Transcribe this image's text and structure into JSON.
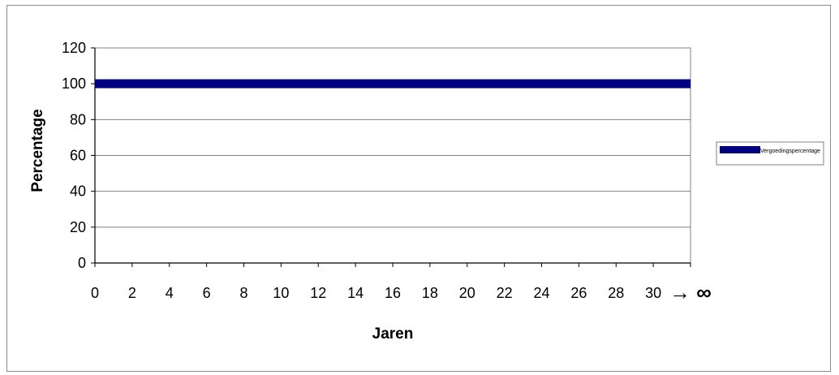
{
  "chart_data": {
    "type": "line",
    "title": "",
    "xlabel": "Jaren",
    "ylabel": "Percentage",
    "x": [
      0,
      2,
      4,
      6,
      8,
      10,
      12,
      14,
      16,
      18,
      20,
      22,
      24,
      26,
      28,
      30
    ],
    "xlim": [
      0,
      32
    ],
    "x_ticks": [
      "0",
      "2",
      "4",
      "6",
      "8",
      "10",
      "12",
      "14",
      "16",
      "18",
      "20",
      "22",
      "24",
      "26",
      "28",
      "30"
    ],
    "x_end_label": "→ ∞",
    "ylim": [
      0,
      120
    ],
    "y_ticks": [
      "0",
      "20",
      "40",
      "60",
      "80",
      "100",
      "120"
    ],
    "grid": true,
    "legend_position": "right",
    "series": [
      {
        "name": "Vergoedingspercentage",
        "color": "#000080",
        "values": [
          100,
          100,
          100,
          100,
          100,
          100,
          100,
          100,
          100,
          100,
          100,
          100,
          100,
          100,
          100,
          100
        ]
      }
    ]
  }
}
